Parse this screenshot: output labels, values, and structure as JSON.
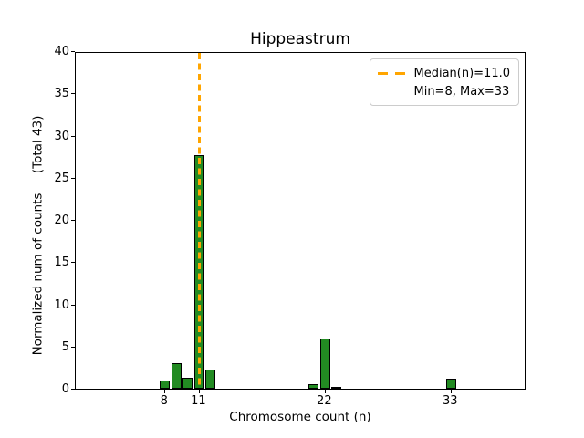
{
  "figure": {
    "title": "Hippeastrum",
    "xlabel": "Chromosome count (n)",
    "ylabel": "Normalized num of counts     (Total 43)"
  },
  "legend": {
    "position": "upper right",
    "entries": [
      {
        "label": "Median(n)=11.0",
        "marker": "orange-dashed-line"
      },
      {
        "label": "Min=8, Max=33",
        "marker": "none"
      }
    ]
  },
  "colors": {
    "bar_fill": "#228B22",
    "bar_edge": "#000000",
    "median_line": "#FFA500",
    "axis": "#000000",
    "background": "#FFFFFF",
    "legend_border": "#CCCCCC"
  },
  "chart_data": {
    "type": "bar",
    "title": "Hippeastrum",
    "xlabel": "Chromosome count (n)",
    "ylabel": "Normalized num of counts     (Total 43)",
    "x": [
      8,
      9,
      10,
      11,
      12,
      21,
      22,
      23,
      33
    ],
    "values": [
      1.0,
      3.0,
      1.3,
      27.7,
      2.3,
      0.5,
      6.0,
      0.2,
      1.2
    ],
    "total_counts": 43,
    "median_line": {
      "x": 11,
      "style": "dashed",
      "color": "#FFA500",
      "label": "Median(n)=11.0"
    },
    "min": 8,
    "max": 33,
    "xticks": [
      8,
      11,
      22,
      33
    ],
    "yticks": [
      0,
      5,
      10,
      15,
      20,
      25,
      30,
      35,
      40
    ],
    "xlim": [
      0.2,
      39.6
    ],
    "ylim": [
      0,
      40
    ],
    "grid": false,
    "legend_position": "upper right"
  }
}
